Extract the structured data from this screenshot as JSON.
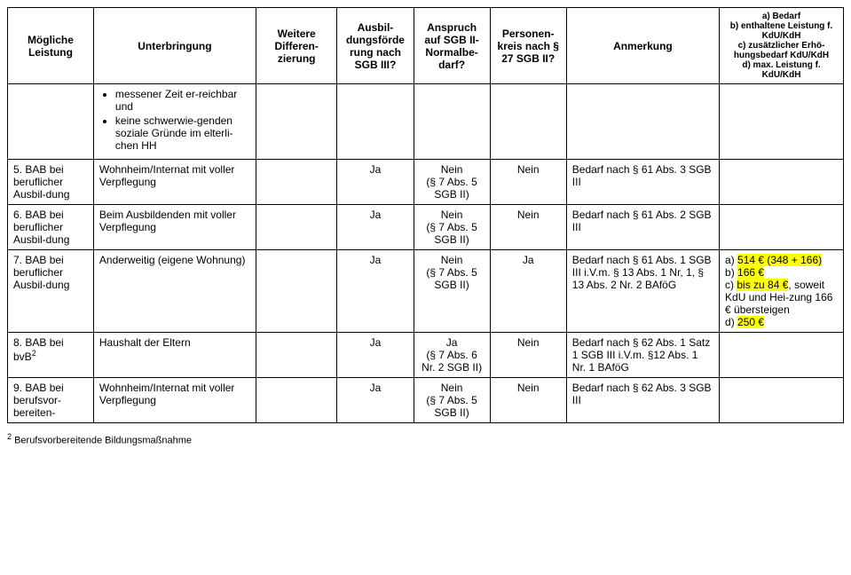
{
  "headers": {
    "leistung": "Mögliche Leistung",
    "unterbringung": "Unterbringung",
    "diff": "Weitere Differen-zierung",
    "ausbild": "Ausbil-dungsförde rung nach SGB III?",
    "anspruch": "Anspruch auf SGB II-Normalbe-darf?",
    "personen": "Personen-kreis nach § 27 SGB II?",
    "anmerkung": "Anmerkung",
    "bedarf": "a) Bedarf\nb) enthaltene Leistung f. KdU/KdH\nc) zusätzlicher Erhö-hungsbedarf KdU/KdH\nd) max. Leistung f. KdU/KdH"
  },
  "rows": {
    "r0": {
      "unterbringung_bullets": [
        "messener Zeit er-reichbar und",
        "keine schwerwie-genden soziale Gründe im elterli-chen HH"
      ]
    },
    "r5": {
      "num": "5.",
      "leistung": "BAB bei beruflicher Ausbil-dung",
      "unterbringung": "Wohnheim/Internat mit voller Verpflegung",
      "ausbild": "Ja",
      "anspruch": "Nein\n(§ 7 Abs. 5 SGB II)",
      "personen": "Nein",
      "anmerkung": "Bedarf nach § 61 Abs. 3 SGB III"
    },
    "r6": {
      "num": "6.",
      "leistung": "BAB bei beruflicher Ausbil-dung",
      "unterbringung": "Beim Ausbildenden mit voller Verpflegung",
      "ausbild": "Ja",
      "anspruch": "Nein\n(§ 7 Abs. 5 SGB II)",
      "personen": "Nein",
      "anmerkung": "Bedarf nach § 61 Abs. 2 SGB III"
    },
    "r7": {
      "num": "7.",
      "leistung": "BAB bei beruflicher Ausbil-dung",
      "unterbringung": "Anderweitig (eigene Wohnung)",
      "ausbild": "Ja",
      "anspruch": "Nein\n(§ 7 Abs. 5 SGB II)",
      "personen": "Ja",
      "anmerkung": "Bedarf nach § 61 Abs. 1 SGB III i.V.m. § 13 Abs. 1 Nr, 1, § 13 Abs. 2 Nr. 2  BAföG",
      "bedarf": {
        "a_pre": "a)  ",
        "a_hl": "514 € (348 + 166)",
        "b_pre": "b)  ",
        "b_hl": "166 €",
        "c_pre": "c)  ",
        "c_hl": "bis zu 84 €",
        "c_rest": ", soweit KdU und Hei-zung 166 € übersteigen",
        "d_pre": "d)  ",
        "d_hl": "250 €"
      }
    },
    "r8": {
      "num": "8.",
      "leistung_pre": "BAB bei bvB",
      "leistung_sup": "2",
      "unterbringung": "Haushalt der Eltern",
      "ausbild": "Ja",
      "anspruch": "Ja\n(§ 7 Abs. 6 Nr. 2 SGB II)",
      "personen": "Nein",
      "anmerkung": "Bedarf nach § 62 Abs. 1 Satz 1 SGB III i.V.m. §12 Abs. 1 Nr. 1 BAföG"
    },
    "r9": {
      "num": "9.",
      "leistung": "BAB bei berufsvor-bereiten-",
      "unterbringung": "Wohnheim/Internat mit voller Verpflegung",
      "ausbild": "Ja",
      "anspruch": "Nein\n(§ 7 Abs. 5 SGB II)",
      "personen": "Nein",
      "anmerkung": "Bedarf nach § 62 Abs. 3 SGB III"
    }
  },
  "footnote": {
    "sup": "2",
    "text": " Berufsvorbereitende Bildungsmaßnahme"
  }
}
